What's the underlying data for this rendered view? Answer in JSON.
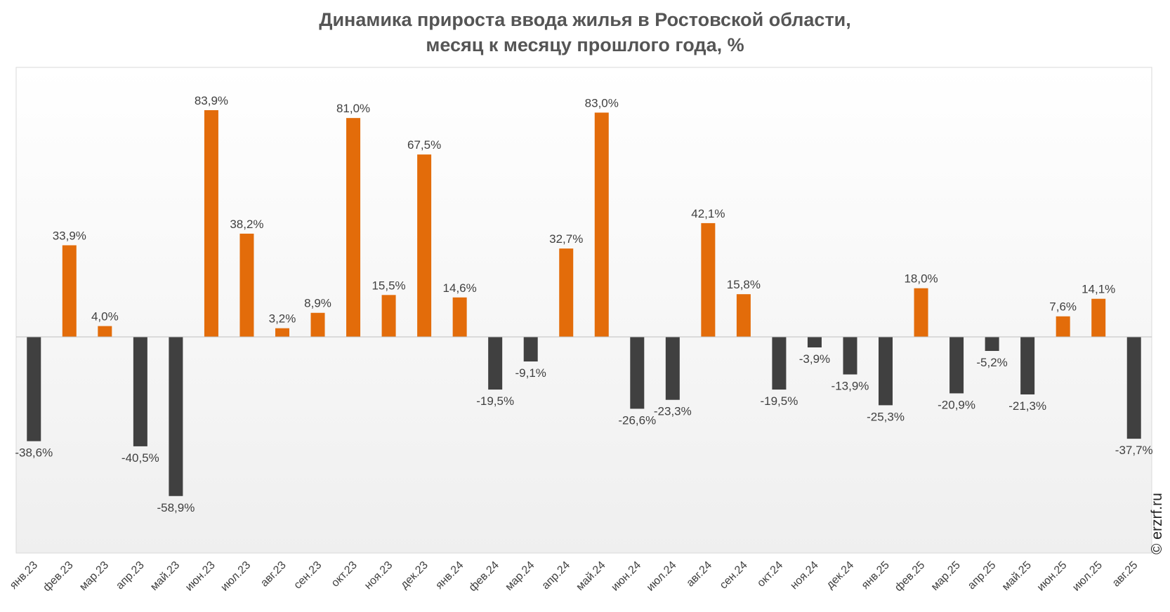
{
  "chart_data": {
    "type": "bar",
    "title_line1": "Динамика прироста ввода жилья в Ростовской области,",
    "title_line2": "месяц к месяцу прошлого года, %",
    "xlabel": "",
    "ylabel": "",
    "categories": [
      "янв.23",
      "фев.23",
      "мар.23",
      "апр.23",
      "май.23",
      "июн.23",
      "июл.23",
      "авг.23",
      "сен.23",
      "окт.23",
      "ноя.23",
      "дек.23",
      "янв.24",
      "фев.24",
      "мар.24",
      "апр.24",
      "май.24",
      "июн.24",
      "июл.24",
      "авг.24",
      "сен.24",
      "окт.24",
      "ноя.24",
      "дек.24",
      "янв.25",
      "фев.25",
      "мар.25",
      "апр.25",
      "май.25",
      "июн.25",
      "июл.25",
      "авг.25"
    ],
    "values": [
      -38.6,
      33.9,
      4.0,
      -40.5,
      -58.9,
      83.9,
      38.2,
      3.2,
      8.9,
      81.0,
      15.5,
      67.5,
      14.6,
      -19.5,
      -9.1,
      32.7,
      83.0,
      -26.6,
      -23.3,
      42.1,
      15.8,
      -19.5,
      -3.9,
      -13.9,
      -25.3,
      18.0,
      -20.9,
      -5.2,
      -21.3,
      7.6,
      14.1,
      -37.7
    ],
    "data_labels": [
      "-38,6%",
      "33,9%",
      "4,0%",
      "-40,5%",
      "-58,9%",
      "83,9%",
      "38,2%",
      "3,2%",
      "8,9%",
      "81,0%",
      "15,5%",
      "67,5%",
      "14,6%",
      "-19,5%",
      "-9,1%",
      "32,7%",
      "83,0%",
      "-26,6%",
      "-23,3%",
      "42,1%",
      "15,8%",
      "-19,5%",
      "-3,9%",
      "-13,9%",
      "-25,3%",
      "18,0%",
      "-20,9%",
      "-5,2%",
      "-21,3%",
      "7,6%",
      "14,1%",
      "-37,7%"
    ],
    "ylim": [
      -79,
      100
    ],
    "grid": false,
    "legend": "none",
    "colors": {
      "positive": "#E36C0A",
      "negative": "#404040",
      "label": "#404040"
    }
  },
  "credit": "© erzrf.ru"
}
